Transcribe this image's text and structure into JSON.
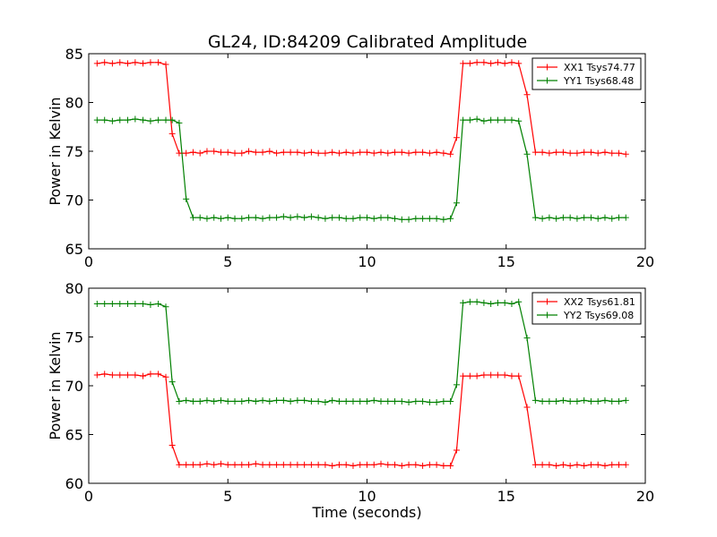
{
  "title": "GL24, ID:84209 Calibrated Amplitude",
  "chart_data": [
    {
      "type": "line",
      "ylabel": "Power in Kelvin",
      "xlabel": "",
      "xlim": [
        0,
        20
      ],
      "ylim": [
        65,
        85
      ],
      "xticks": [
        "0",
        "5",
        "10",
        "15",
        "20"
      ],
      "yticks": [
        "65",
        "70",
        "75",
        "80",
        "85"
      ],
      "legend_placement": "top-right",
      "grid": false,
      "x": [
        0.3,
        0.57,
        0.85,
        1.12,
        1.4,
        1.67,
        1.95,
        2.22,
        2.5,
        2.77,
        3.0,
        3.25,
        3.5,
        3.75,
        4.0,
        4.25,
        4.5,
        4.75,
        5.0,
        5.25,
        5.5,
        5.75,
        6.0,
        6.25,
        6.5,
        6.75,
        7.0,
        7.25,
        7.5,
        7.75,
        8.0,
        8.25,
        8.5,
        8.75,
        9.0,
        9.25,
        9.5,
        9.75,
        10.0,
        10.25,
        10.5,
        10.75,
        11.0,
        11.25,
        11.5,
        11.75,
        12.0,
        12.25,
        12.5,
        12.75,
        13.0,
        13.22,
        13.45,
        13.7,
        13.95,
        14.2,
        14.45,
        14.7,
        14.95,
        15.2,
        15.45,
        15.75,
        16.05,
        16.3,
        16.55,
        16.8,
        17.05,
        17.3,
        17.55,
        17.8,
        18.05,
        18.3,
        18.55,
        18.8,
        19.05,
        19.3
      ],
      "series": [
        {
          "name": "XX1 Tsys74.77",
          "color": "#ff0000",
          "values": [
            84.0,
            84.1,
            84.0,
            84.1,
            84.0,
            84.1,
            84.0,
            84.1,
            84.1,
            83.9,
            76.8,
            74.8,
            74.8,
            74.9,
            74.8,
            75.0,
            75.0,
            74.9,
            74.9,
            74.8,
            74.8,
            75.0,
            74.9,
            74.9,
            75.0,
            74.8,
            74.9,
            74.9,
            74.9,
            74.8,
            74.9,
            74.8,
            74.8,
            74.9,
            74.8,
            74.9,
            74.8,
            74.9,
            74.9,
            74.8,
            74.9,
            74.8,
            74.9,
            74.9,
            74.8,
            74.9,
            74.9,
            74.8,
            74.9,
            74.8,
            74.7,
            76.4,
            84.0,
            84.0,
            84.1,
            84.1,
            84.0,
            84.1,
            84.0,
            84.1,
            84.0,
            80.8,
            74.9,
            74.9,
            74.8,
            74.9,
            74.9,
            74.8,
            74.8,
            74.9,
            74.9,
            74.8,
            74.9,
            74.8,
            74.8,
            74.7
          ]
        },
        {
          "name": "YY1 Tsys68.48",
          "color": "#008000",
          "values": [
            78.2,
            78.2,
            78.1,
            78.2,
            78.2,
            78.3,
            78.2,
            78.1,
            78.2,
            78.2,
            78.2,
            77.9,
            70.1,
            68.2,
            68.2,
            68.1,
            68.2,
            68.1,
            68.2,
            68.1,
            68.1,
            68.2,
            68.2,
            68.1,
            68.2,
            68.2,
            68.3,
            68.2,
            68.3,
            68.2,
            68.3,
            68.2,
            68.1,
            68.2,
            68.2,
            68.1,
            68.1,
            68.2,
            68.2,
            68.1,
            68.2,
            68.2,
            68.1,
            68.0,
            68.0,
            68.1,
            68.1,
            68.1,
            68.1,
            68.0,
            68.1,
            69.7,
            78.2,
            78.2,
            78.3,
            78.1,
            78.2,
            78.2,
            78.2,
            78.2,
            78.1,
            74.7,
            68.2,
            68.1,
            68.2,
            68.1,
            68.2,
            68.2,
            68.1,
            68.2,
            68.2,
            68.1,
            68.2,
            68.1,
            68.2,
            68.2
          ]
        }
      ]
    },
    {
      "type": "line",
      "ylabel": "Power in Kelvin",
      "xlabel": "Time (seconds)",
      "xlim": [
        0,
        20
      ],
      "ylim": [
        60,
        80
      ],
      "xticks": [
        "0",
        "5",
        "10",
        "15",
        "20"
      ],
      "yticks": [
        "60",
        "65",
        "70",
        "75",
        "80"
      ],
      "legend_placement": "top-right",
      "grid": false,
      "x": [
        0.3,
        0.57,
        0.85,
        1.12,
        1.4,
        1.67,
        1.95,
        2.22,
        2.5,
        2.77,
        3.0,
        3.25,
        3.5,
        3.75,
        4.0,
        4.25,
        4.5,
        4.75,
        5.0,
        5.25,
        5.5,
        5.75,
        6.0,
        6.25,
        6.5,
        6.75,
        7.0,
        7.25,
        7.5,
        7.75,
        8.0,
        8.25,
        8.5,
        8.75,
        9.0,
        9.25,
        9.5,
        9.75,
        10.0,
        10.25,
        10.5,
        10.75,
        11.0,
        11.25,
        11.5,
        11.75,
        12.0,
        12.25,
        12.5,
        12.75,
        13.0,
        13.22,
        13.45,
        13.7,
        13.95,
        14.2,
        14.45,
        14.7,
        14.95,
        15.2,
        15.45,
        15.75,
        16.05,
        16.3,
        16.55,
        16.8,
        17.05,
        17.3,
        17.55,
        17.8,
        18.05,
        18.3,
        18.55,
        18.8,
        19.05,
        19.3
      ],
      "series": [
        {
          "name": "XX2 Tsys61.81",
          "color": "#ff0000",
          "values": [
            71.1,
            71.2,
            71.1,
            71.1,
            71.1,
            71.1,
            71.0,
            71.2,
            71.2,
            70.9,
            63.9,
            61.9,
            61.9,
            61.9,
            61.9,
            62.0,
            61.9,
            62.0,
            61.9,
            61.9,
            61.9,
            61.9,
            62.0,
            61.9,
            61.9,
            61.9,
            61.9,
            61.9,
            61.9,
            61.9,
            61.9,
            61.9,
            61.9,
            61.8,
            61.9,
            61.9,
            61.8,
            61.9,
            61.9,
            61.9,
            62.0,
            61.9,
            61.9,
            61.8,
            61.9,
            61.9,
            61.8,
            61.9,
            61.9,
            61.8,
            61.8,
            63.4,
            71.0,
            71.0,
            71.0,
            71.1,
            71.1,
            71.1,
            71.1,
            71.0,
            71.0,
            67.8,
            61.9,
            61.9,
            61.9,
            61.8,
            61.9,
            61.8,
            61.9,
            61.8,
            61.9,
            61.9,
            61.8,
            61.9,
            61.9,
            61.9
          ]
        },
        {
          "name": "YY2 Tsys69.08",
          "color": "#008000",
          "values": [
            78.4,
            78.4,
            78.4,
            78.4,
            78.4,
            78.4,
            78.4,
            78.3,
            78.4,
            78.1,
            70.4,
            68.4,
            68.5,
            68.4,
            68.4,
            68.5,
            68.4,
            68.5,
            68.4,
            68.4,
            68.4,
            68.5,
            68.4,
            68.5,
            68.4,
            68.5,
            68.5,
            68.4,
            68.5,
            68.5,
            68.4,
            68.4,
            68.3,
            68.5,
            68.4,
            68.4,
            68.4,
            68.4,
            68.4,
            68.5,
            68.4,
            68.4,
            68.4,
            68.4,
            68.3,
            68.4,
            68.4,
            68.3,
            68.3,
            68.4,
            68.4,
            70.1,
            78.5,
            78.6,
            78.6,
            78.5,
            78.4,
            78.5,
            78.5,
            78.4,
            78.6,
            74.9,
            68.5,
            68.4,
            68.4,
            68.4,
            68.5,
            68.4,
            68.4,
            68.5,
            68.4,
            68.4,
            68.5,
            68.4,
            68.4,
            68.5
          ]
        }
      ]
    }
  ]
}
